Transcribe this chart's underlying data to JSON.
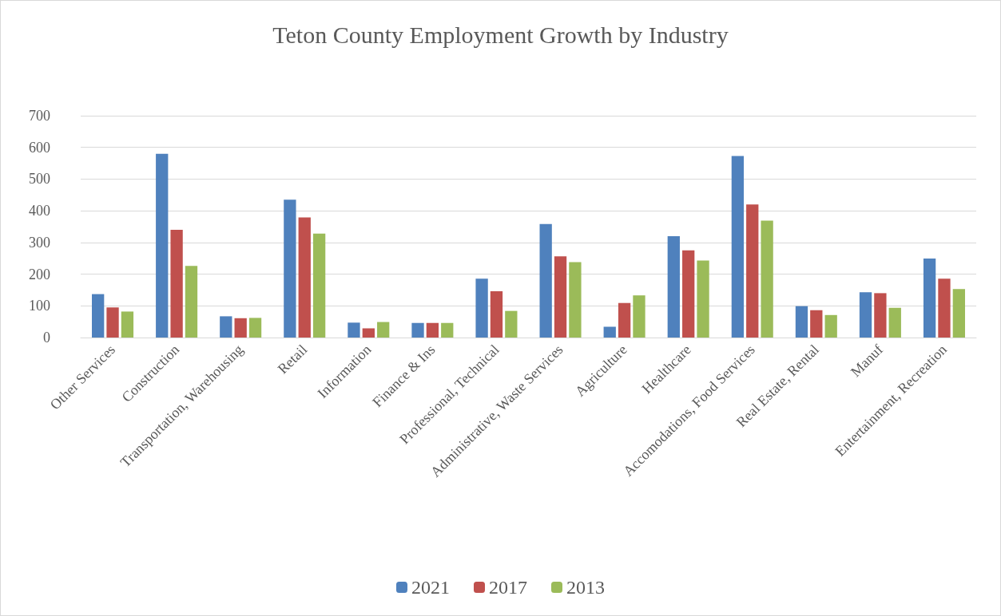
{
  "chart_data": {
    "type": "bar",
    "title": "Teton County Employment Growth by Industry",
    "categories": [
      "Other Services",
      "Construction",
      "Transportation, Warehousing",
      "Retail",
      "Information",
      "Finance & Ins",
      "Professional, Technical",
      "Administrative, Waste Services",
      "Agriculture",
      "Healthcare",
      "Accomodations, Food Services",
      "Real Estate, Rental",
      "Manuf",
      "Entertainment, Recreation"
    ],
    "series": [
      {
        "name": "2021",
        "color": "#4f81bd",
        "values": [
          137,
          580,
          67,
          435,
          47,
          46,
          186,
          358,
          34,
          320,
          573,
          99,
          143,
          249
        ]
      },
      {
        "name": "2017",
        "color": "#c0504d",
        "values": [
          95,
          340,
          61,
          379,
          29,
          46,
          146,
          256,
          109,
          275,
          420,
          86,
          140,
          186
        ]
      },
      {
        "name": "2013",
        "color": "#9bbb59",
        "values": [
          82,
          226,
          62,
          328,
          49,
          46,
          84,
          238,
          133,
          243,
          369,
          71,
          94,
          153
        ]
      }
    ],
    "ylim": [
      0,
      700
    ],
    "yticks": [
      0,
      100,
      200,
      300,
      400,
      500,
      600,
      700
    ],
    "grid": "y",
    "legend": "bottom"
  }
}
